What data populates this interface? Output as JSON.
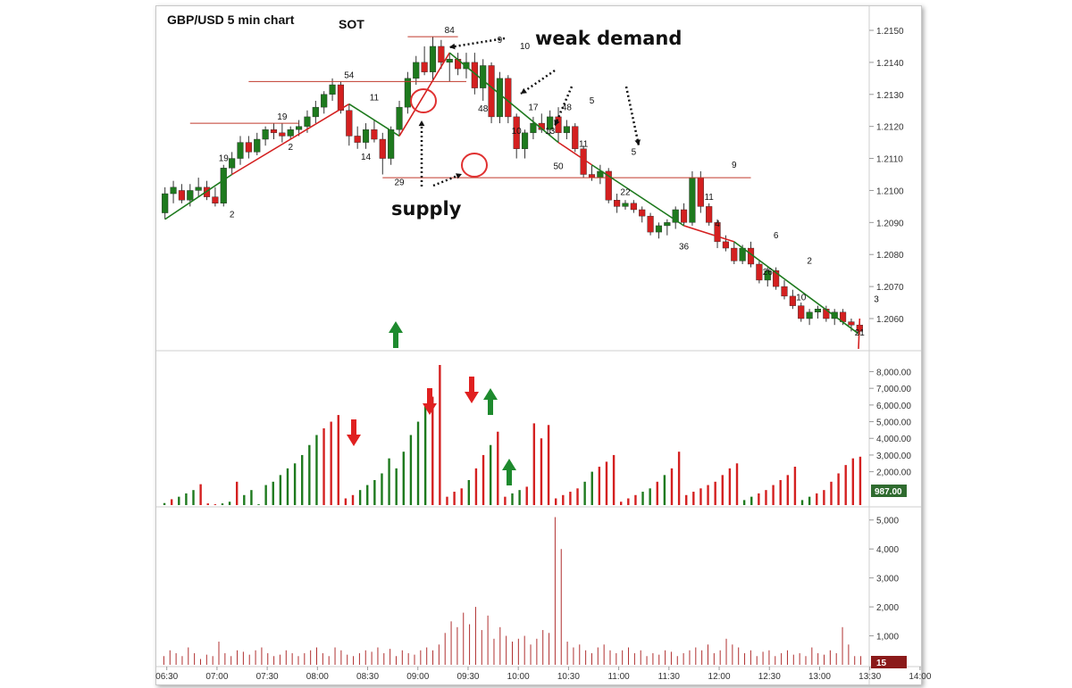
{
  "title": "GBP/USD 5 min chart",
  "colors": {
    "up": "#1e7a1e",
    "down": "#d42020",
    "wick": "#333333",
    "level": "#c0392b",
    "tick_vol": "#b03030",
    "badge_vol": "#2f6b2f",
    "badge_tick": "#8b1a1a"
  },
  "annotations": {
    "sot": "SOT",
    "weak_demand": "weak demand",
    "supply": "supply"
  },
  "chart_data": [
    {
      "type": "candlestick",
      "title": "GBP/USD 5 min chart",
      "ylim": [
        1.205,
        1.216
      ],
      "y_ticks": [
        "1.2150",
        "1.2140",
        "1.2130",
        "1.2120",
        "1.2110",
        "1.2100",
        "1.2090",
        "1.2080",
        "1.2070",
        "1.2060"
      ],
      "x_ticks": [
        "06:30",
        "07:00",
        "07:30",
        "08:00",
        "08:30",
        "09:00",
        "09:30",
        "10:00",
        "10:30",
        "11:00",
        "11:30",
        "12:00",
        "12:30",
        "13:00",
        "13:30",
        "14:00"
      ],
      "bars_per_x_tick": 6,
      "ohlc": [
        [
          1.2093,
          1.2101,
          1.2091,
          1.2099
        ],
        [
          1.2099,
          1.2103,
          1.2096,
          1.2101
        ],
        [
          1.21,
          1.2102,
          1.2096,
          1.2097
        ],
        [
          1.2097,
          1.2102,
          1.2095,
          1.21
        ],
        [
          1.21,
          1.2104,
          1.2098,
          1.2101
        ],
        [
          1.2101,
          1.2103,
          1.2097,
          1.2098
        ],
        [
          1.2098,
          1.2101,
          1.2095,
          1.2096
        ],
        [
          1.2096,
          1.2108,
          1.2095,
          1.2107
        ],
        [
          1.2107,
          1.2112,
          1.2105,
          1.211
        ],
        [
          1.211,
          1.2117,
          1.2108,
          1.2115
        ],
        [
          1.2115,
          1.2117,
          1.211,
          1.2112
        ],
        [
          1.2112,
          1.2118,
          1.2111,
          1.2116
        ],
        [
          1.2116,
          1.212,
          1.2114,
          1.2119
        ],
        [
          1.2119,
          1.2121,
          1.2116,
          1.2118
        ],
        [
          1.2118,
          1.2121,
          1.2115,
          1.2117
        ],
        [
          1.2117,
          1.212,
          1.2116,
          1.2119
        ],
        [
          1.2119,
          1.2122,
          1.2117,
          1.212
        ],
        [
          1.212,
          1.2125,
          1.2118,
          1.2123
        ],
        [
          1.2123,
          1.2128,
          1.2121,
          1.2126
        ],
        [
          1.2126,
          1.2131,
          1.2124,
          1.213
        ],
        [
          1.213,
          1.2135,
          1.2128,
          1.2133
        ],
        [
          1.2133,
          1.2134,
          1.2124,
          1.2125
        ],
        [
          1.2125,
          1.2127,
          1.2114,
          1.2117
        ],
        [
          1.2117,
          1.212,
          1.2113,
          1.2115
        ],
        [
          1.2115,
          1.2121,
          1.2113,
          1.2119
        ],
        [
          1.2119,
          1.2122,
          1.2115,
          1.2116
        ],
        [
          1.2116,
          1.2118,
          1.2105,
          1.211
        ],
        [
          1.211,
          1.212,
          1.2108,
          1.2119
        ],
        [
          1.2119,
          1.2128,
          1.2117,
          1.2126
        ],
        [
          1.2126,
          1.2137,
          1.2124,
          1.2135
        ],
        [
          1.2135,
          1.2142,
          1.2133,
          1.214
        ],
        [
          1.214,
          1.2145,
          1.2136,
          1.2137
        ],
        [
          1.2137,
          1.2148,
          1.2134,
          1.2145
        ],
        [
          1.2145,
          1.2147,
          1.2138,
          1.214
        ],
        [
          1.214,
          1.2143,
          1.2134,
          1.2141
        ],
        [
          1.2141,
          1.2143,
          1.2136,
          1.2138
        ],
        [
          1.2138,
          1.2143,
          1.2135,
          1.214
        ],
        [
          1.214,
          1.2143,
          1.213,
          1.2132
        ],
        [
          1.2132,
          1.2141,
          1.2128,
          1.2139
        ],
        [
          1.2139,
          1.214,
          1.2121,
          1.2123
        ],
        [
          1.2123,
          1.2137,
          1.2121,
          1.2135
        ],
        [
          1.2135,
          1.2136,
          1.2121,
          1.2123
        ],
        [
          1.2123,
          1.2124,
          1.211,
          1.2113
        ],
        [
          1.2113,
          1.2119,
          1.211,
          1.2118
        ],
        [
          1.2118,
          1.2123,
          1.2116,
          1.2121
        ],
        [
          1.2121,
          1.2124,
          1.2118,
          1.2119
        ],
        [
          1.2119,
          1.2125,
          1.2117,
          1.2123
        ],
        [
          1.2123,
          1.2126,
          1.2115,
          1.2118
        ],
        [
          1.2118,
          1.2122,
          1.2116,
          1.212
        ],
        [
          1.212,
          1.2121,
          1.2112,
          1.2113
        ],
        [
          1.2113,
          1.2114,
          1.2104,
          1.2105
        ],
        [
          1.2105,
          1.2108,
          1.2103,
          1.2104
        ],
        [
          1.2104,
          1.2108,
          1.2102,
          1.2106
        ],
        [
          1.2106,
          1.2107,
          1.2096,
          1.2097
        ],
        [
          1.2097,
          1.2099,
          1.2093,
          1.2095
        ],
        [
          1.2095,
          1.2097,
          1.2094,
          1.2096
        ],
        [
          1.2096,
          1.2097,
          1.2093,
          1.2094
        ],
        [
          1.2094,
          1.2095,
          1.209,
          1.2092
        ],
        [
          1.2092,
          1.2093,
          1.2086,
          1.2087
        ],
        [
          1.2087,
          1.209,
          1.2085,
          1.2089
        ],
        [
          1.2089,
          1.2091,
          1.2086,
          1.209
        ],
        [
          1.209,
          1.2095,
          1.2088,
          1.2094
        ],
        [
          1.2094,
          1.2096,
          1.2089,
          1.209
        ],
        [
          1.209,
          1.2106,
          1.2089,
          1.2104
        ],
        [
          1.2104,
          1.2106,
          1.2093,
          1.2095
        ],
        [
          1.2095,
          1.2096,
          1.2089,
          1.209
        ],
        [
          1.209,
          1.2091,
          1.2082,
          1.2084
        ],
        [
          1.2084,
          1.2086,
          1.2081,
          1.2082
        ],
        [
          1.2082,
          1.2084,
          1.2077,
          1.2078
        ],
        [
          1.2078,
          1.2083,
          1.2077,
          1.2082
        ],
        [
          1.2082,
          1.2084,
          1.2076,
          1.2077
        ],
        [
          1.2077,
          1.2078,
          1.2071,
          1.2072
        ],
        [
          1.2072,
          1.2076,
          1.207,
          1.2075
        ],
        [
          1.2075,
          1.2076,
          1.2069,
          1.207
        ],
        [
          1.207,
          1.2072,
          1.2066,
          1.2067
        ],
        [
          1.2067,
          1.2069,
          1.2063,
          1.2064
        ],
        [
          1.2064,
          1.2065,
          1.2059,
          1.206
        ],
        [
          1.206,
          1.2063,
          1.2058,
          1.2062
        ],
        [
          1.2062,
          1.2064,
          1.206,
          1.2063
        ],
        [
          1.2063,
          1.2064,
          1.2059,
          1.206
        ],
        [
          1.206,
          1.2063,
          1.2058,
          1.2062
        ],
        [
          1.2062,
          1.2063,
          1.2058,
          1.2059
        ],
        [
          1.2059,
          1.206,
          1.2056,
          1.2058
        ],
        [
          1.2058,
          1.2059,
          1.2055,
          1.2056
        ]
      ],
      "count_labels": [
        {
          "bar": 8,
          "text": "2",
          "pos": "below",
          "price": 1.2095
        },
        {
          "bar": 7,
          "text": "19",
          "pos": "above",
          "price": 1.2108
        },
        {
          "bar": 15,
          "text": "2",
          "pos": "below",
          "price": 1.2116
        },
        {
          "bar": 14,
          "text": "19",
          "pos": "above",
          "price": 1.2121
        },
        {
          "bar": 28,
          "text": "29",
          "pos": "below",
          "price": 1.2105
        },
        {
          "bar": 24,
          "text": "14",
          "pos": "below",
          "price": 1.2113
        },
        {
          "bar": 25,
          "text": "11",
          "pos": "above",
          "price": 1.2127
        },
        {
          "bar": 22,
          "text": "54",
          "pos": "above",
          "price": 1.2134
        },
        {
          "bar": 34,
          "text": "84",
          "pos": "above",
          "price": 1.2148
        },
        {
          "bar": 40,
          "text": "9",
          "pos": "above",
          "price": 1.2145
        },
        {
          "bar": 43,
          "text": "10",
          "pos": "above",
          "price": 1.2143
        },
        {
          "bar": 38,
          "text": "48",
          "pos": "below",
          "price": 1.2128
        },
        {
          "bar": 42,
          "text": "10",
          "pos": "below",
          "price": 1.2121
        },
        {
          "bar": 44,
          "text": "17",
          "pos": "above",
          "price": 1.2124
        },
        {
          "bar": 46,
          "text": "13",
          "pos": "below",
          "price": 1.2121
        },
        {
          "bar": 48,
          "text": "48",
          "pos": "above",
          "price": 1.2124
        },
        {
          "bar": 47,
          "text": "50",
          "pos": "below",
          "price": 1.211
        },
        {
          "bar": 50,
          "text": "11",
          "pos": "below",
          "price": 1.2117
        },
        {
          "bar": 51,
          "text": "5",
          "pos": "above",
          "price": 1.2126
        },
        {
          "bar": 56,
          "text": "5",
          "pos": "above",
          "price": 1.211
        },
        {
          "bar": 55,
          "text": "22",
          "pos": "below",
          "price": 1.2102
        },
        {
          "bar": 62,
          "text": "36",
          "pos": "below",
          "price": 1.2085
        },
        {
          "bar": 65,
          "text": "11",
          "pos": "above",
          "price": 1.2096
        },
        {
          "bar": 66,
          "text": "4",
          "pos": "below",
          "price": 1.2092
        },
        {
          "bar": 68,
          "text": "9",
          "pos": "above",
          "price": 1.2106
        },
        {
          "bar": 72,
          "text": "26",
          "pos": "below",
          "price": 1.2077
        },
        {
          "bar": 73,
          "text": "6",
          "pos": "above",
          "price": 1.2084
        },
        {
          "bar": 76,
          "text": "10",
          "pos": "below",
          "price": 1.2069
        },
        {
          "bar": 77,
          "text": "2",
          "pos": "above",
          "price": 1.2076
        },
        {
          "bar": 83,
          "text": "21",
          "pos": "below",
          "price": 1.2058
        },
        {
          "bar": 85,
          "text": "3",
          "pos": "above",
          "price": 1.2064
        }
      ],
      "levels": [
        {
          "price": 1.2134,
          "from_bar": 10,
          "to_bar": 36
        },
        {
          "price": 1.2121,
          "from_bar": 3,
          "to_bar": 16
        },
        {
          "price": 1.2148,
          "from_bar": 29,
          "to_bar": 35
        },
        {
          "price": 1.2104,
          "from_bar": 26,
          "to_bar": 70
        }
      ]
    },
    {
      "type": "bar",
      "title": "",
      "ylim": [
        0,
        9000
      ],
      "y_ticks": [
        "8,000.00",
        "7,000.00",
        "6,000.00",
        "5,000.00",
        "4,000.00",
        "3,000.00",
        "2,000.00"
      ],
      "last_value": "987.00",
      "values": [
        120,
        350,
        500,
        700,
        900,
        1250,
        100,
        50,
        100,
        200,
        1400,
        600,
        900,
        50,
        1200,
        1400,
        1800,
        2200,
        2500,
        3000,
        3600,
        4200,
        4600,
        5000,
        5400,
        400,
        600,
        900,
        1200,
        1500,
        1900,
        2800,
        2200,
        3200,
        4200,
        5000,
        6000,
        6500,
        8400,
        500,
        800,
        1000,
        1500,
        2200,
        3000,
        3600,
        4400,
        500,
        700,
        900,
        1100,
        4900,
        4000,
        4800,
        400,
        600,
        800,
        1000,
        1400,
        2000,
        2300,
        2600,
        3000,
        200,
        400,
        600,
        800,
        1000,
        1400,
        1800,
        2200,
        3200,
        600,
        800,
        1000,
        1200,
        1400,
        1800,
        2200,
        2500,
        300,
        500,
        700,
        900,
        1200,
        1500,
        1800,
        2300,
        300,
        500,
        700,
        900,
        1400,
        1900,
        2400,
        2800,
        2900
      ],
      "colors": "gdgggdddggdgggggggggggdddddggggggggggdddddgddgddggddddddddggddddddggdgddddddddddggddddddggdddddddd"
    },
    {
      "type": "bar",
      "title": "",
      "ylim": [
        0,
        5500
      ],
      "y_ticks": [
        "5,000",
        "4,000",
        "3,000",
        "2,000",
        "1,000"
      ],
      "last_value": "15",
      "values": [
        300,
        500,
        400,
        300,
        600,
        400,
        200,
        350,
        300,
        800,
        400,
        300,
        500,
        450,
        350,
        500,
        600,
        400,
        300,
        350,
        500,
        400,
        300,
        400,
        500,
        600,
        400,
        300,
        600,
        500,
        350,
        300,
        400,
        500,
        450,
        600,
        400,
        550,
        300,
        500,
        400,
        350,
        500,
        600,
        500,
        700,
        1100,
        1500,
        1300,
        1800,
        1400,
        2000,
        1200,
        1700,
        900,
        1300,
        1000,
        800,
        900,
        1000,
        700,
        900,
        1200,
        1100,
        5100,
        4000,
        800,
        600,
        700,
        500,
        400,
        600,
        700,
        500,
        400,
        500,
        600,
        400,
        500,
        300,
        400,
        350,
        500,
        450,
        300,
        400,
        500,
        600,
        500,
        700,
        400,
        500,
        900,
        700,
        600,
        400,
        500,
        300,
        450,
        500,
        300,
        400,
        500,
        350,
        400,
        300,
        600,
        400,
        350,
        500,
        400,
        1300,
        700,
        300,
        300
      ]
    }
  ]
}
